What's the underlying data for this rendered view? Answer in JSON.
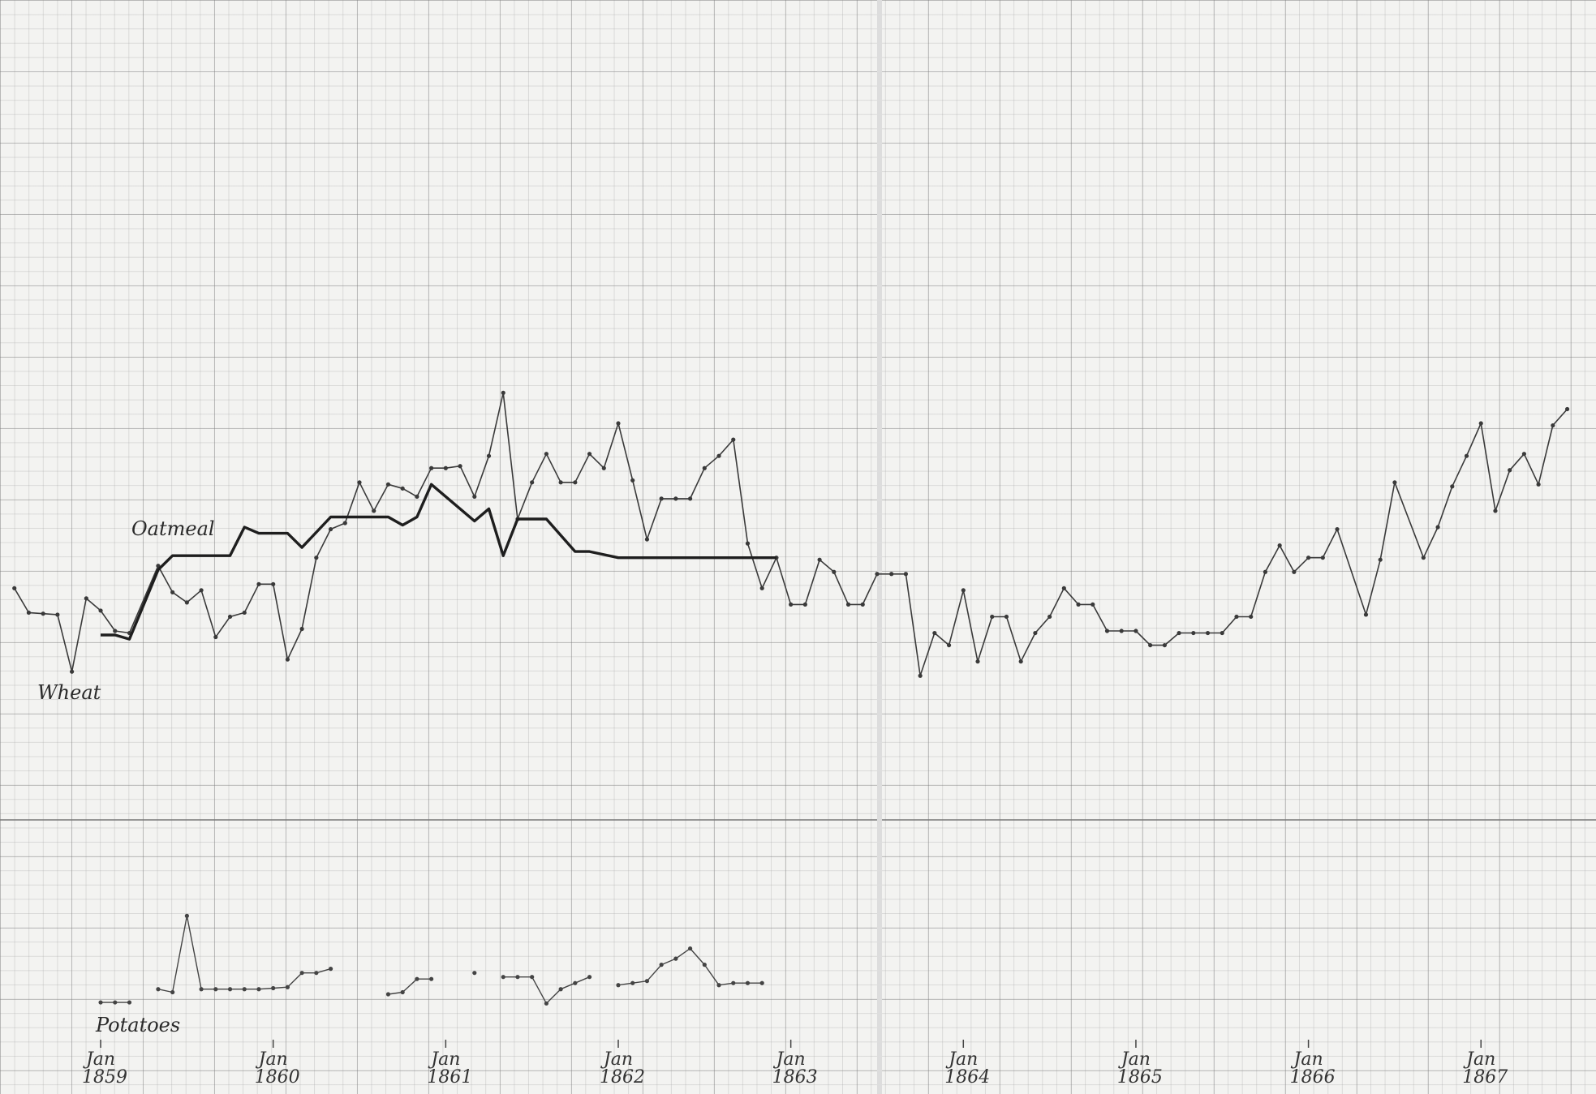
{
  "chart_data": {
    "type": "line",
    "xlim": [
      "1858-06",
      "1867-09"
    ],
    "ylim": [
      0,
      107.5
    ],
    "xticks": [
      {
        "value": "1859-01",
        "label": "Jan 1859"
      },
      {
        "value": "1860-01",
        "label": "Jan 1860"
      },
      {
        "value": "1861-01",
        "label": "Jan 1861"
      },
      {
        "value": "1862-01",
        "label": "Jan 1862"
      },
      {
        "value": "1863-01",
        "label": "Jan 1863"
      },
      {
        "value": "1864-01",
        "label": "Jan 1864"
      },
      {
        "value": "1865-01",
        "label": "Jan 1865"
      },
      {
        "value": "1866-01",
        "label": "Jan 1866"
      },
      {
        "value": "1867-01",
        "label": "Jan 1867"
      }
    ],
    "series": [
      {
        "name": "Wheat",
        "color": "#3a3a3a",
        "line_width": 1.6,
        "marker": true,
        "x": [
          "1858-07",
          "1858-08",
          "1858-09",
          "1858-10",
          "1858-11",
          "1858-12",
          "1859-01",
          "1859-02",
          "1859-03",
          "1859-05",
          "1859-06",
          "1859-07",
          "1859-08",
          "1859-09",
          "1859-10",
          "1859-11",
          "1859-12",
          "1860-01",
          "1860-02",
          "1860-03",
          "1860-04",
          "1860-05",
          "1860-06",
          "1860-07",
          "1860-08",
          "1860-09",
          "1860-10",
          "1860-11",
          "1860-12",
          "1861-01",
          "1861-02",
          "1861-03",
          "1861-04",
          "1861-05",
          "1861-06",
          "1861-07",
          "1861-08",
          "1861-09",
          "1861-10",
          "1861-11",
          "1861-12",
          "1862-01",
          "1862-02",
          "1862-03",
          "1862-04",
          "1862-05",
          "1862-06",
          "1862-07",
          "1862-08",
          "1862-09",
          "1862-10",
          "1862-11",
          "1862-12",
          "1863-01",
          "1863-02",
          "1863-03",
          "1863-04",
          "1863-05",
          "1863-06",
          "1863-07",
          "1863-08",
          "1863-09",
          "1863-10",
          "1863-11",
          "1863-12",
          "1864-01",
          "1864-02",
          "1864-03",
          "1864-04",
          "1864-05",
          "1864-06",
          "1864-07",
          "1864-08",
          "1864-09",
          "1864-10",
          "1864-11",
          "1864-12",
          "1865-01",
          "1865-02",
          "1865-03",
          "1865-04",
          "1865-05",
          "1865-06",
          "1865-07",
          "1865-08",
          "1865-09",
          "1865-10",
          "1865-11",
          "1865-12",
          "1866-01",
          "1866-02",
          "1866-03",
          "1866-05",
          "1866-06",
          "1866-07",
          "1866-09",
          "1866-10",
          "1866-11",
          "1866-12",
          "1867-01",
          "1867-02",
          "1867-03",
          "1867-04",
          "1867-05",
          "1867-06",
          "1867-07"
        ],
        "values": [
          49.7,
          47.3,
          47.2,
          47.1,
          41.5,
          48.7,
          47.5,
          45.5,
          45.3,
          51.9,
          49.3,
          48.3,
          49.5,
          44.9,
          46.9,
          47.3,
          50.1,
          50.1,
          42.7,
          45.7,
          52.7,
          55.5,
          56.1,
          60.1,
          57.3,
          59.9,
          59.5,
          58.7,
          61.5,
          61.5,
          61.7,
          58.7,
          62.7,
          68.9,
          56.5,
          60.1,
          62.9,
          60.1,
          60.1,
          62.9,
          61.5,
          65.9,
          60.3,
          54.5,
          58.5,
          58.5,
          58.5,
          61.5,
          62.7,
          64.3,
          54.1,
          49.7,
          52.7,
          48.1,
          48.1,
          52.5,
          51.3,
          48.1,
          48.1,
          51.1,
          51.1,
          51.1,
          41.1,
          45.3,
          44.1,
          49.5,
          42.5,
          46.9,
          46.9,
          42.5,
          45.3,
          46.9,
          49.7,
          48.1,
          48.1,
          45.5,
          45.5,
          45.5,
          44.1,
          44.1,
          45.3,
          45.3,
          45.3,
          45.3,
          46.9,
          46.9,
          51.3,
          53.9,
          51.3,
          52.7,
          52.7,
          55.5,
          47.1,
          52.5,
          60.1,
          52.7,
          55.7,
          59.7,
          62.7,
          65.9,
          57.3,
          61.3,
          62.9,
          59.9,
          65.7,
          67.3
        ]
      },
      {
        "name": "Oatmeal",
        "color": "#1e1e1e",
        "line_width": 3.4,
        "marker": false,
        "x": [
          "1859-01",
          "1859-02",
          "1859-03",
          "1859-05",
          "1859-06",
          "1859-07",
          "1859-08",
          "1859-09",
          "1859-10",
          "1859-11",
          "1859-12",
          "1860-01",
          "1860-02",
          "1860-03",
          "1860-05",
          "1860-06",
          "1860-07",
          "1860-08",
          "1860-09",
          "1860-10",
          "1860-11",
          "1860-12",
          "1861-03",
          "1861-04",
          "1861-05",
          "1861-06",
          "1861-08",
          "1861-10",
          "1861-11",
          "1862-01",
          "1862-12"
        ],
        "values": [
          45.1,
          45.1,
          44.7,
          51.5,
          52.9,
          52.9,
          52.9,
          52.9,
          52.9,
          55.7,
          55.1,
          55.1,
          55.1,
          53.7,
          56.7,
          56.7,
          56.7,
          56.7,
          56.7,
          55.9,
          56.7,
          59.9,
          56.3,
          57.5,
          52.9,
          56.5,
          56.5,
          53.3,
          53.3,
          52.7,
          52.7
        ]
      },
      {
        "name": "Potatoes",
        "color": "#444444",
        "line_width": 1.4,
        "marker": true,
        "x": [
          "1859-01",
          "1859-02",
          "1859-03",
          "1859-04",
          "1859-05",
          "1859-06",
          "1859-07",
          "1859-08",
          "1859-09",
          "1859-10",
          "1859-11",
          "1859-12",
          "1860-01",
          "1860-02",
          "1860-03",
          "1860-04",
          "1860-05",
          "1860-06",
          "1860-09",
          "1860-10",
          "1860-11",
          "1860-12",
          "1861-01",
          "1861-03",
          "1861-04",
          "1861-05",
          "1861-06",
          "1861-07",
          "1861-08",
          "1861-09",
          "1861-10",
          "1861-11",
          "1861-12",
          "1862-01",
          "1862-02",
          "1862-03",
          "1862-04",
          "1862-05",
          "1862-06",
          "1862-07",
          "1862-08",
          "1862-09",
          "1862-10",
          "1862-11"
        ],
        "values": [
          9.0,
          9.0,
          9.0,
          null,
          10.3,
          10.0,
          17.5,
          10.3,
          10.3,
          10.3,
          10.3,
          10.3,
          10.4,
          10.5,
          11.9,
          11.9,
          12.3,
          null,
          9.8,
          10.0,
          11.3,
          11.3,
          null,
          11.9,
          null,
          11.5,
          11.5,
          11.5,
          8.9,
          10.3,
          10.9,
          11.5,
          null,
          10.7,
          10.9,
          11.1,
          12.7,
          13.3,
          14.3,
          12.7,
          10.7,
          10.9,
          10.9,
          10.9
        ]
      }
    ]
  }
}
